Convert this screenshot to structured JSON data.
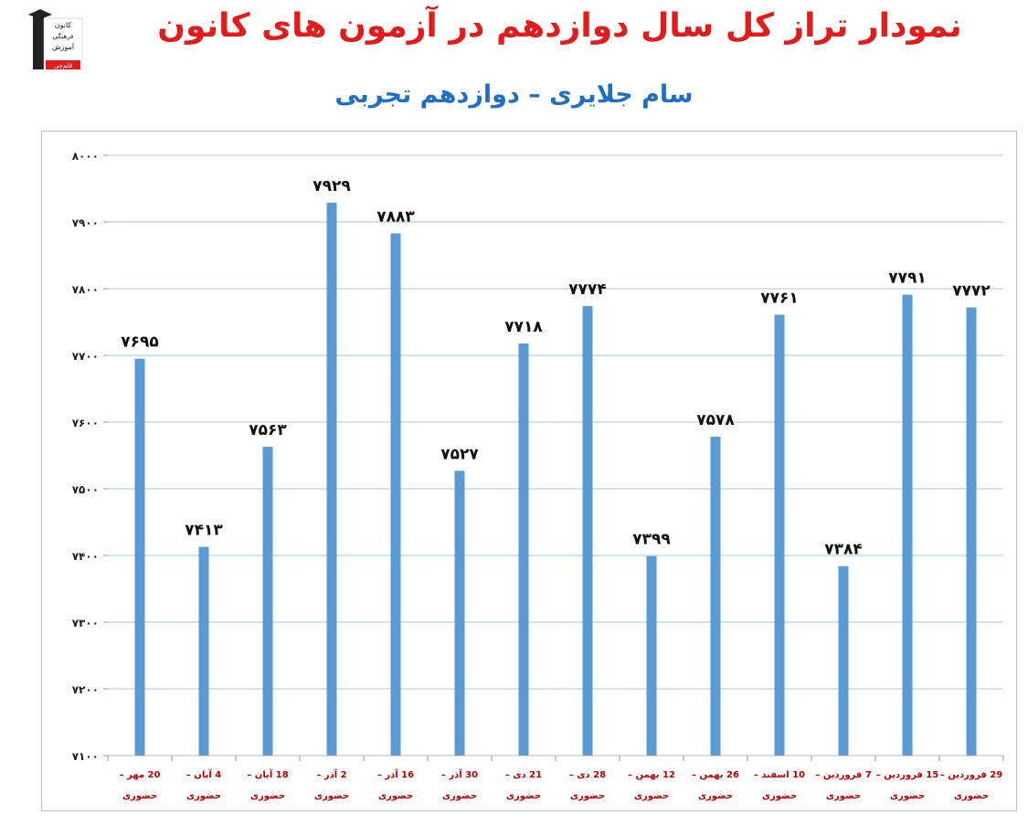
{
  "header": {
    "title": "نمودار تراز کل سال دوازدهم در آزمون های کانون",
    "subtitle": "سام جلایری – دوازدهم تجربی"
  },
  "logo": {
    "lines": [
      "کانون",
      "فرهنگی",
      "آموزش",
      "قلم‌چی"
    ]
  },
  "colors": {
    "bar": "#5b9bd5",
    "grid": "#a7c4e2",
    "title": "#e31b1b",
    "subtitle": "#1f6fc4",
    "category_text": "#c00000"
  },
  "chart_data": {
    "type": "bar",
    "ylim": [
      7100,
      8000
    ],
    "yticks": [
      "۷۱۰۰",
      "۷۲۰۰",
      "۷۳۰۰",
      "۷۴۰۰",
      "۷۵۰۰",
      "۷۶۰۰",
      "۷۷۰۰",
      "۷۸۰۰",
      "۷۹۰۰",
      "۸۰۰۰"
    ],
    "grid": true,
    "categories": [
      [
        "20 مهر –",
        "حضوری"
      ],
      [
        "4 آبان –",
        "حضوری"
      ],
      [
        "18 آبان –",
        "حضوری"
      ],
      [
        "2 آذر –",
        "حضوری"
      ],
      [
        "16 آذر –",
        "حضوری"
      ],
      [
        "30 آذر –",
        "حضوری"
      ],
      [
        "21 دی –",
        "حضوری"
      ],
      [
        "28 دی –",
        "حضوری"
      ],
      [
        "12 بهمن –",
        "حضوری"
      ],
      [
        "26 بهمن –",
        "حضوری"
      ],
      [
        "10 اسفند –",
        "حضوری"
      ],
      [
        "7 فروردین –",
        "حضوری"
      ],
      [
        "15 فروردین –",
        "حضوری"
      ],
      [
        "29 فروردین –",
        "حضوری"
      ]
    ],
    "values": [
      7695,
      7413,
      7563,
      7929,
      7883,
      7527,
      7718,
      7774,
      7399,
      7578,
      7761,
      7384,
      7791,
      7772
    ],
    "value_labels": [
      "۷۶۹۵",
      "۷۴۱۳",
      "۷۵۶۳",
      "۷۹۲۹",
      "۷۸۸۳",
      "۷۵۲۷",
      "۷۷۱۸",
      "۷۷۷۴",
      "۷۳۹۹",
      "۷۵۷۸",
      "۷۷۶۱",
      "۷۳۸۴",
      "۷۷۹۱",
      "۷۷۷۲"
    ]
  }
}
